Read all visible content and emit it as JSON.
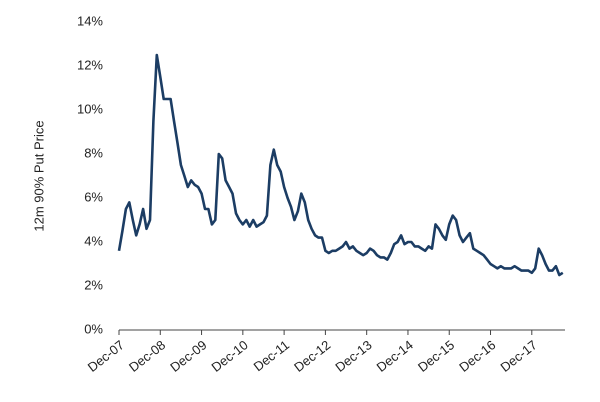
{
  "chart_data": {
    "type": "line",
    "y_label": "12m 90% Put Price",
    "x": [
      "Dec-07",
      "Jan-08",
      "Feb-08",
      "Mar-08",
      "Apr-08",
      "May-08",
      "Jun-08",
      "Jul-08",
      "Aug-08",
      "Sep-08",
      "Oct-08",
      "Nov-08",
      "Dec-08",
      "Jan-09",
      "Feb-09",
      "Mar-09",
      "Apr-09",
      "May-09",
      "Jun-09",
      "Jul-09",
      "Aug-09",
      "Sep-09",
      "Oct-09",
      "Nov-09",
      "Dec-09",
      "Jan-10",
      "Feb-10",
      "Mar-10",
      "Apr-10",
      "May-10",
      "Jun-10",
      "Jul-10",
      "Aug-10",
      "Sep-10",
      "Oct-10",
      "Nov-10",
      "Dec-10",
      "Jan-11",
      "Feb-11",
      "Mar-11",
      "Apr-11",
      "May-11",
      "Jun-11",
      "Jul-11",
      "Aug-11",
      "Sep-11",
      "Oct-11",
      "Nov-11",
      "Dec-11",
      "Jan-12",
      "Feb-12",
      "Mar-12",
      "Apr-12",
      "May-12",
      "Jun-12",
      "Jul-12",
      "Aug-12",
      "Sep-12",
      "Oct-12",
      "Nov-12",
      "Dec-12",
      "Jan-13",
      "Feb-13",
      "Mar-13",
      "Apr-13",
      "May-13",
      "Jun-13",
      "Jul-13",
      "Aug-13",
      "Sep-13",
      "Oct-13",
      "Nov-13",
      "Dec-13",
      "Jan-14",
      "Feb-14",
      "Mar-14",
      "Apr-14",
      "May-14",
      "Jun-14",
      "Jul-14",
      "Aug-14",
      "Sep-14",
      "Oct-14",
      "Nov-14",
      "Dec-14",
      "Jan-15",
      "Feb-15",
      "Mar-15",
      "Apr-15",
      "May-15",
      "Jun-15",
      "Jul-15",
      "Aug-15",
      "Sep-15",
      "Oct-15",
      "Nov-15",
      "Dec-15",
      "Jan-16",
      "Feb-16",
      "Mar-16",
      "Apr-16",
      "May-16",
      "Jun-16",
      "Jul-16",
      "Aug-16",
      "Sep-16",
      "Oct-16",
      "Nov-16",
      "Dec-16",
      "Jan-17",
      "Feb-17",
      "Mar-17",
      "Apr-17",
      "May-17",
      "Jun-17",
      "Jul-17",
      "Aug-17",
      "Sep-17",
      "Oct-17",
      "Nov-17",
      "Dec-17",
      "Jan-18",
      "Feb-18",
      "Mar-18",
      "Apr-18",
      "May-18",
      "Jun-18",
      "Jul-18",
      "Aug-18",
      "Sep-18"
    ],
    "values": [
      3.6,
      4.5,
      5.5,
      5.8,
      5.0,
      4.3,
      4.8,
      5.5,
      4.6,
      5.0,
      9.5,
      12.5,
      11.5,
      10.5,
      10.5,
      10.5,
      9.5,
      8.5,
      7.5,
      7.0,
      6.5,
      6.8,
      6.6,
      6.5,
      6.2,
      5.5,
      5.5,
      4.8,
      5.0,
      8.0,
      7.8,
      6.8,
      6.5,
      6.2,
      5.3,
      5.0,
      4.8,
      5.0,
      4.7,
      5.0,
      4.7,
      4.8,
      4.9,
      5.2,
      7.5,
      8.2,
      7.5,
      7.2,
      6.5,
      6.0,
      5.6,
      5.0,
      5.4,
      6.2,
      5.8,
      5.0,
      4.6,
      4.3,
      4.2,
      4.2,
      3.6,
      3.5,
      3.6,
      3.6,
      3.7,
      3.8,
      4.0,
      3.7,
      3.8,
      3.6,
      3.5,
      3.4,
      3.5,
      3.7,
      3.6,
      3.4,
      3.3,
      3.3,
      3.2,
      3.5,
      3.9,
      4.0,
      4.3,
      3.9,
      4.0,
      4.0,
      3.8,
      3.8,
      3.7,
      3.6,
      3.8,
      3.7,
      4.8,
      4.6,
      4.3,
      4.1,
      4.8,
      5.2,
      5.0,
      4.3,
      4.0,
      4.2,
      4.4,
      3.7,
      3.6,
      3.5,
      3.4,
      3.2,
      3.0,
      2.9,
      2.8,
      2.9,
      2.8,
      2.8,
      2.8,
      2.9,
      2.8,
      2.7,
      2.7,
      2.7,
      2.6,
      2.8,
      3.7,
      3.4,
      3.0,
      2.7,
      2.7,
      2.9,
      2.5,
      2.6
    ],
    "color": "#1c3d64",
    "xticks": [
      "Dec-07",
      "Dec-08",
      "Dec-09",
      "Dec-10",
      "Dec-11",
      "Dec-12",
      "Dec-13",
      "Dec-14",
      "Dec-15",
      "Dec-16",
      "Dec-17"
    ],
    "ylim": [
      0,
      14
    ],
    "yticks": [
      {
        "value": 0,
        "label": "0%"
      },
      {
        "value": 2,
        "label": "2%"
      },
      {
        "value": 4,
        "label": "4%"
      },
      {
        "value": 6,
        "label": "6%"
      },
      {
        "value": 8,
        "label": "8%"
      },
      {
        "value": 10,
        "label": "10%"
      },
      {
        "value": 12,
        "label": "12%"
      },
      {
        "value": 14,
        "label": "14%"
      }
    ]
  }
}
